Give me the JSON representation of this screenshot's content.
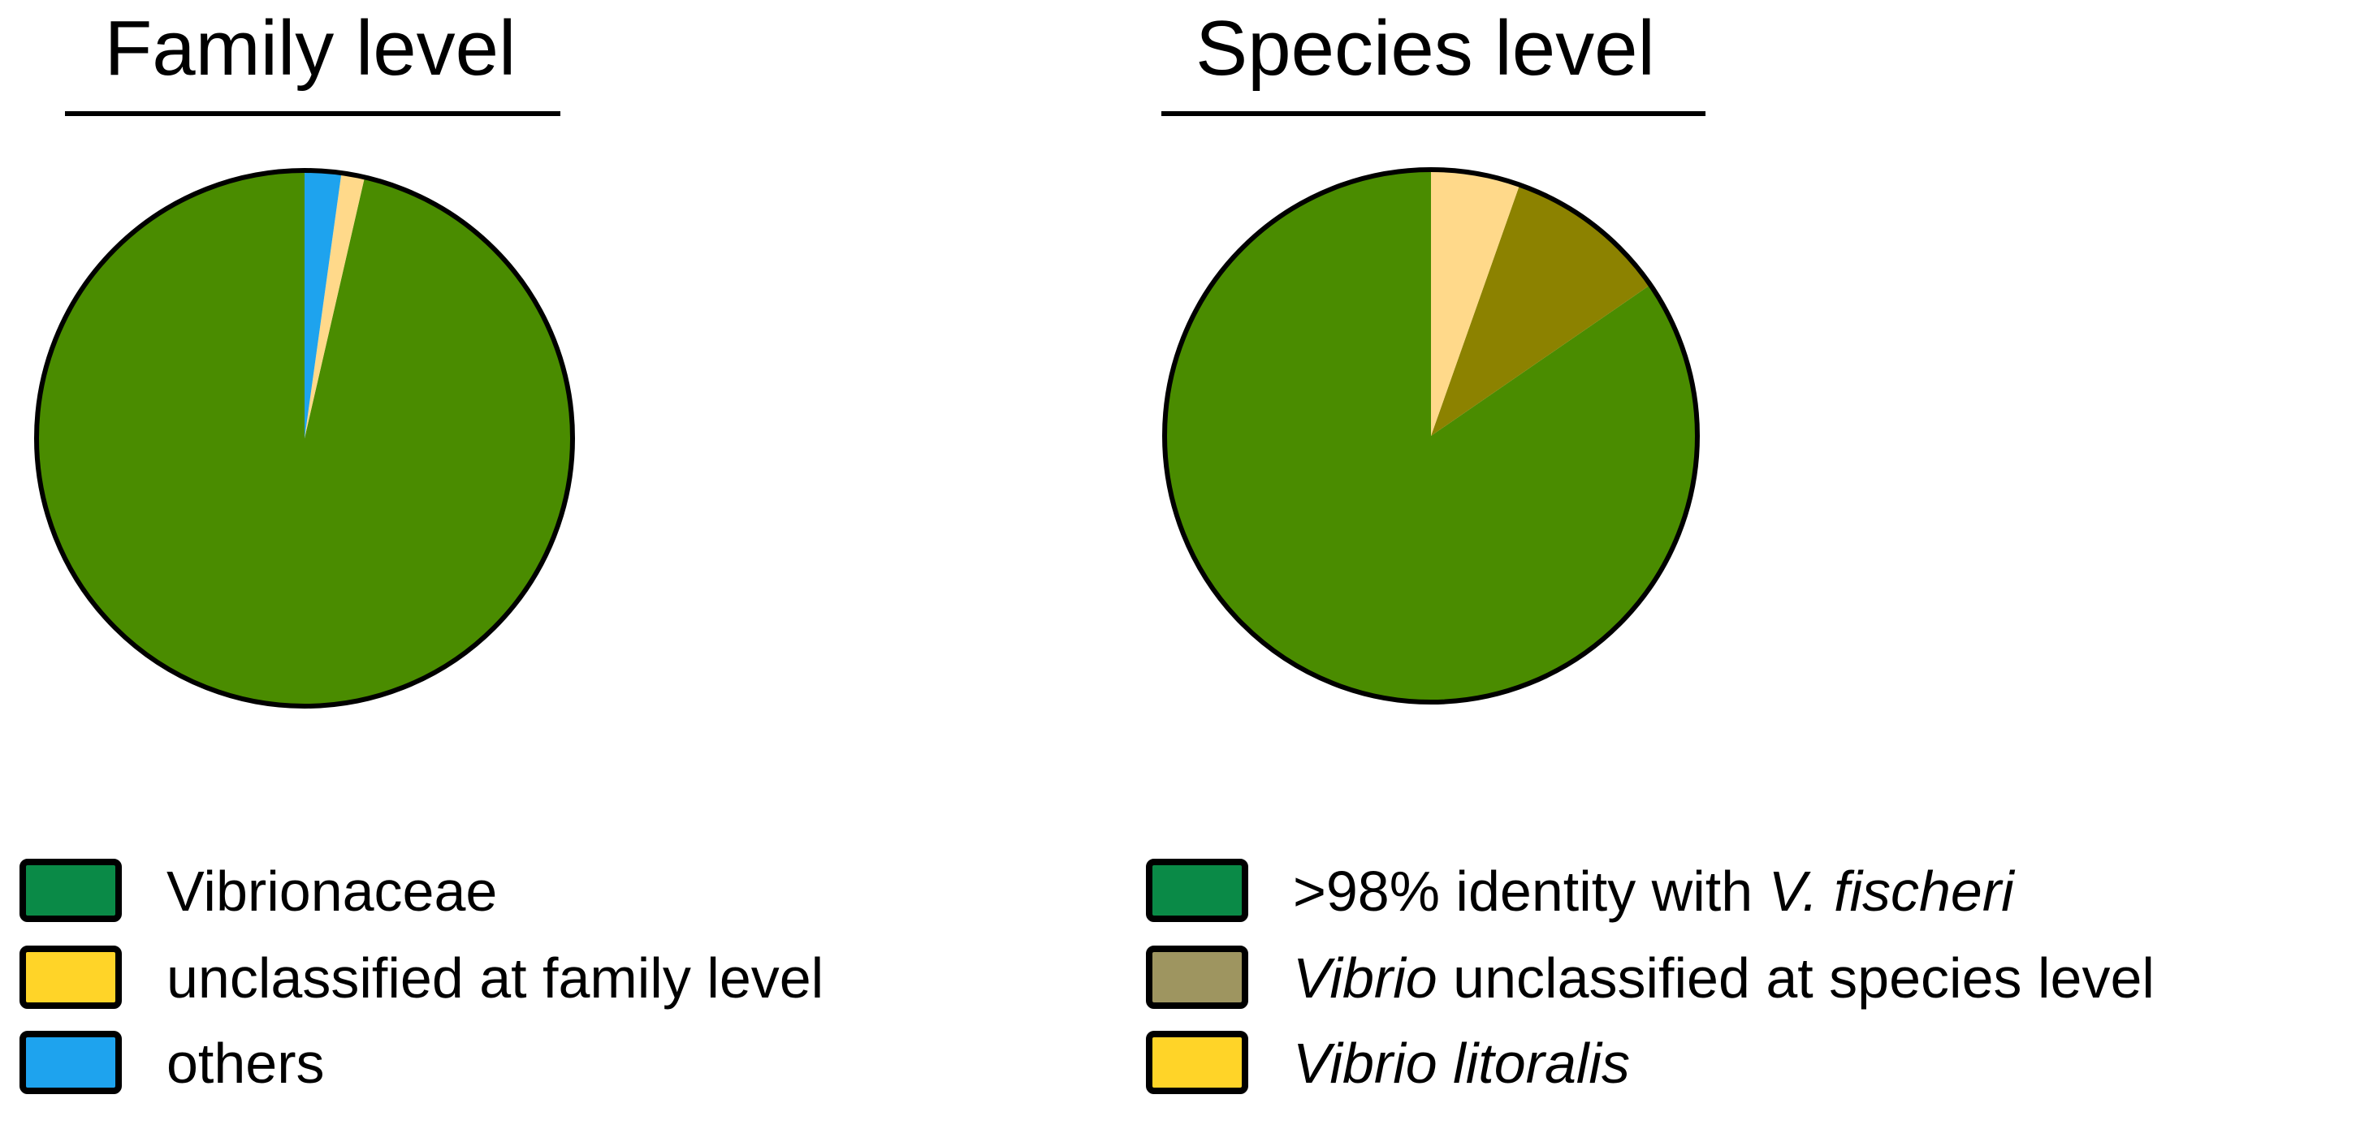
{
  "chart_data": [
    {
      "type": "pie",
      "title": "Family level",
      "slices": [
        {
          "label": "Vibrionaceae",
          "value": 96.4,
          "color": "#4a8c00",
          "legend_color": "#0a8a47"
        },
        {
          "label": "unclassified at family level",
          "value": 1.4,
          "color": "#ffd98a",
          "legend_color": "#ffd428"
        },
        {
          "label": "others",
          "value": 2.2,
          "color": "#1ea3ee",
          "legend_color": "#1ea3ee"
        }
      ],
      "legend": [
        {
          "parts": [
            {
              "text": "Vibrionaceae",
              "italic": false
            }
          ],
          "color": "#0a8a47"
        },
        {
          "parts": [
            {
              "text": "unclassified at family level",
              "italic": false
            }
          ],
          "color": "#ffd428"
        },
        {
          "parts": [
            {
              "text": "others",
              "italic": false
            }
          ],
          "color": "#1ea3ee"
        }
      ]
    },
    {
      "type": "pie",
      "title": "Species level",
      "slices": [
        {
          "label": ">98% identity with V. fischeri",
          "value": 84.6,
          "color": "#4a8c00",
          "legend_color": "#0a8a47"
        },
        {
          "label": "Vibrio unclassified at species level",
          "value": 10.0,
          "color": "#8c8200",
          "legend_color": "#9e9560"
        },
        {
          "label": "Vibrio litoralis",
          "value": 5.4,
          "color": "#ffd98a",
          "legend_color": "#ffd428"
        }
      ],
      "legend": [
        {
          "parts": [
            {
              "text": ">98% identity with ",
              "italic": false
            },
            {
              "text": "V. fischeri",
              "italic": true
            }
          ],
          "color": "#0a8a47"
        },
        {
          "parts": [
            {
              "text": "Vibrio",
              "italic": true
            },
            {
              "text": " unclassified at species level",
              "italic": false
            }
          ],
          "color": "#9e9560"
        },
        {
          "parts": [
            {
              "text": "Vibrio litoralis",
              "italic": true
            }
          ],
          "color": "#ffd428"
        }
      ]
    }
  ]
}
